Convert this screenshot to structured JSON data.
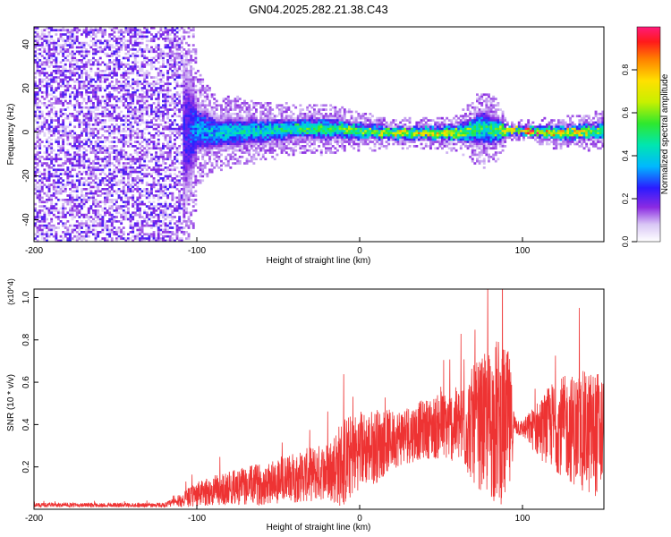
{
  "chart_data": [
    {
      "type": "heatmap",
      "title": "GN04.2025.282.21.38.C43",
      "xlabel": "Height of straight line (km)",
      "ylabel": "Frequency (Hz)",
      "xlim": [
        -200,
        150
      ],
      "ylim": [
        -50,
        48
      ],
      "x_ticks": [
        -200,
        -100,
        0,
        100
      ],
      "y_ticks": [
        -40,
        -20,
        0,
        20,
        40
      ],
      "colorbar": {
        "label": "Normalized spectral amplitude",
        "range": [
          0,
          1
        ],
        "ticks": [
          0.0,
          0.2,
          0.4,
          0.6,
          0.8
        ]
      },
      "ridge": {
        "description_points_km": [
          -200,
          -110,
          -100,
          -90,
          -60,
          -40,
          -20,
          0,
          20,
          40,
          60,
          75,
          85,
          90,
          100,
          120,
          150
        ],
        "center_hz": [
          0,
          0,
          2,
          0,
          1,
          2,
          2,
          1,
          0,
          0,
          0,
          2,
          1,
          1,
          1,
          0,
          1
        ],
        "halfwidth_hz": [
          48,
          48,
          12,
          8,
          6,
          5,
          5,
          4,
          3,
          3,
          4,
          8,
          6,
          2,
          2,
          3,
          4
        ],
        "peak_amplitude": [
          0.2,
          0.2,
          0.35,
          0.4,
          0.45,
          0.5,
          0.55,
          0.6,
          0.7,
          0.75,
          0.65,
          0.5,
          0.6,
          0.85,
          0.9,
          0.8,
          0.6
        ]
      }
    },
    {
      "type": "line",
      "title": "",
      "xlabel": "Height of straight line (km)",
      "ylabel": "SNR (10 * v/v)",
      "y_multiplier": "(x10^4)",
      "xlim": [
        -200,
        150
      ],
      "ylim": [
        0,
        1.04
      ],
      "x_ticks": [
        -200,
        -100,
        0,
        100
      ],
      "y_ticks": [
        0.2,
        0.4,
        0.6,
        0.8,
        1.0
      ],
      "series": [
        {
          "name": "SNR",
          "color": "#ee3333",
          "envelope_x_km": [
            -200,
            -120,
            -110,
            -100,
            -80,
            -60,
            -40,
            -20,
            -10,
            0,
            10,
            20,
            40,
            60,
            70,
            80,
            85,
            92,
            95,
            100,
            110,
            120,
            130,
            140,
            150
          ],
          "envelope_mean": [
            0.02,
            0.02,
            0.04,
            0.07,
            0.1,
            0.12,
            0.15,
            0.18,
            0.22,
            0.28,
            0.3,
            0.33,
            0.38,
            0.4,
            0.4,
            0.4,
            0.42,
            0.38,
            0.4,
            0.38,
            0.38,
            0.4,
            0.38,
            0.36,
            0.36
          ],
          "envelope_amp": [
            0.01,
            0.01,
            0.03,
            0.06,
            0.08,
            0.1,
            0.12,
            0.14,
            0.22,
            0.18,
            0.18,
            0.14,
            0.14,
            0.18,
            0.28,
            0.36,
            0.4,
            0.36,
            0.05,
            0.04,
            0.14,
            0.22,
            0.26,
            0.3,
            0.3
          ]
        }
      ]
    }
  ]
}
